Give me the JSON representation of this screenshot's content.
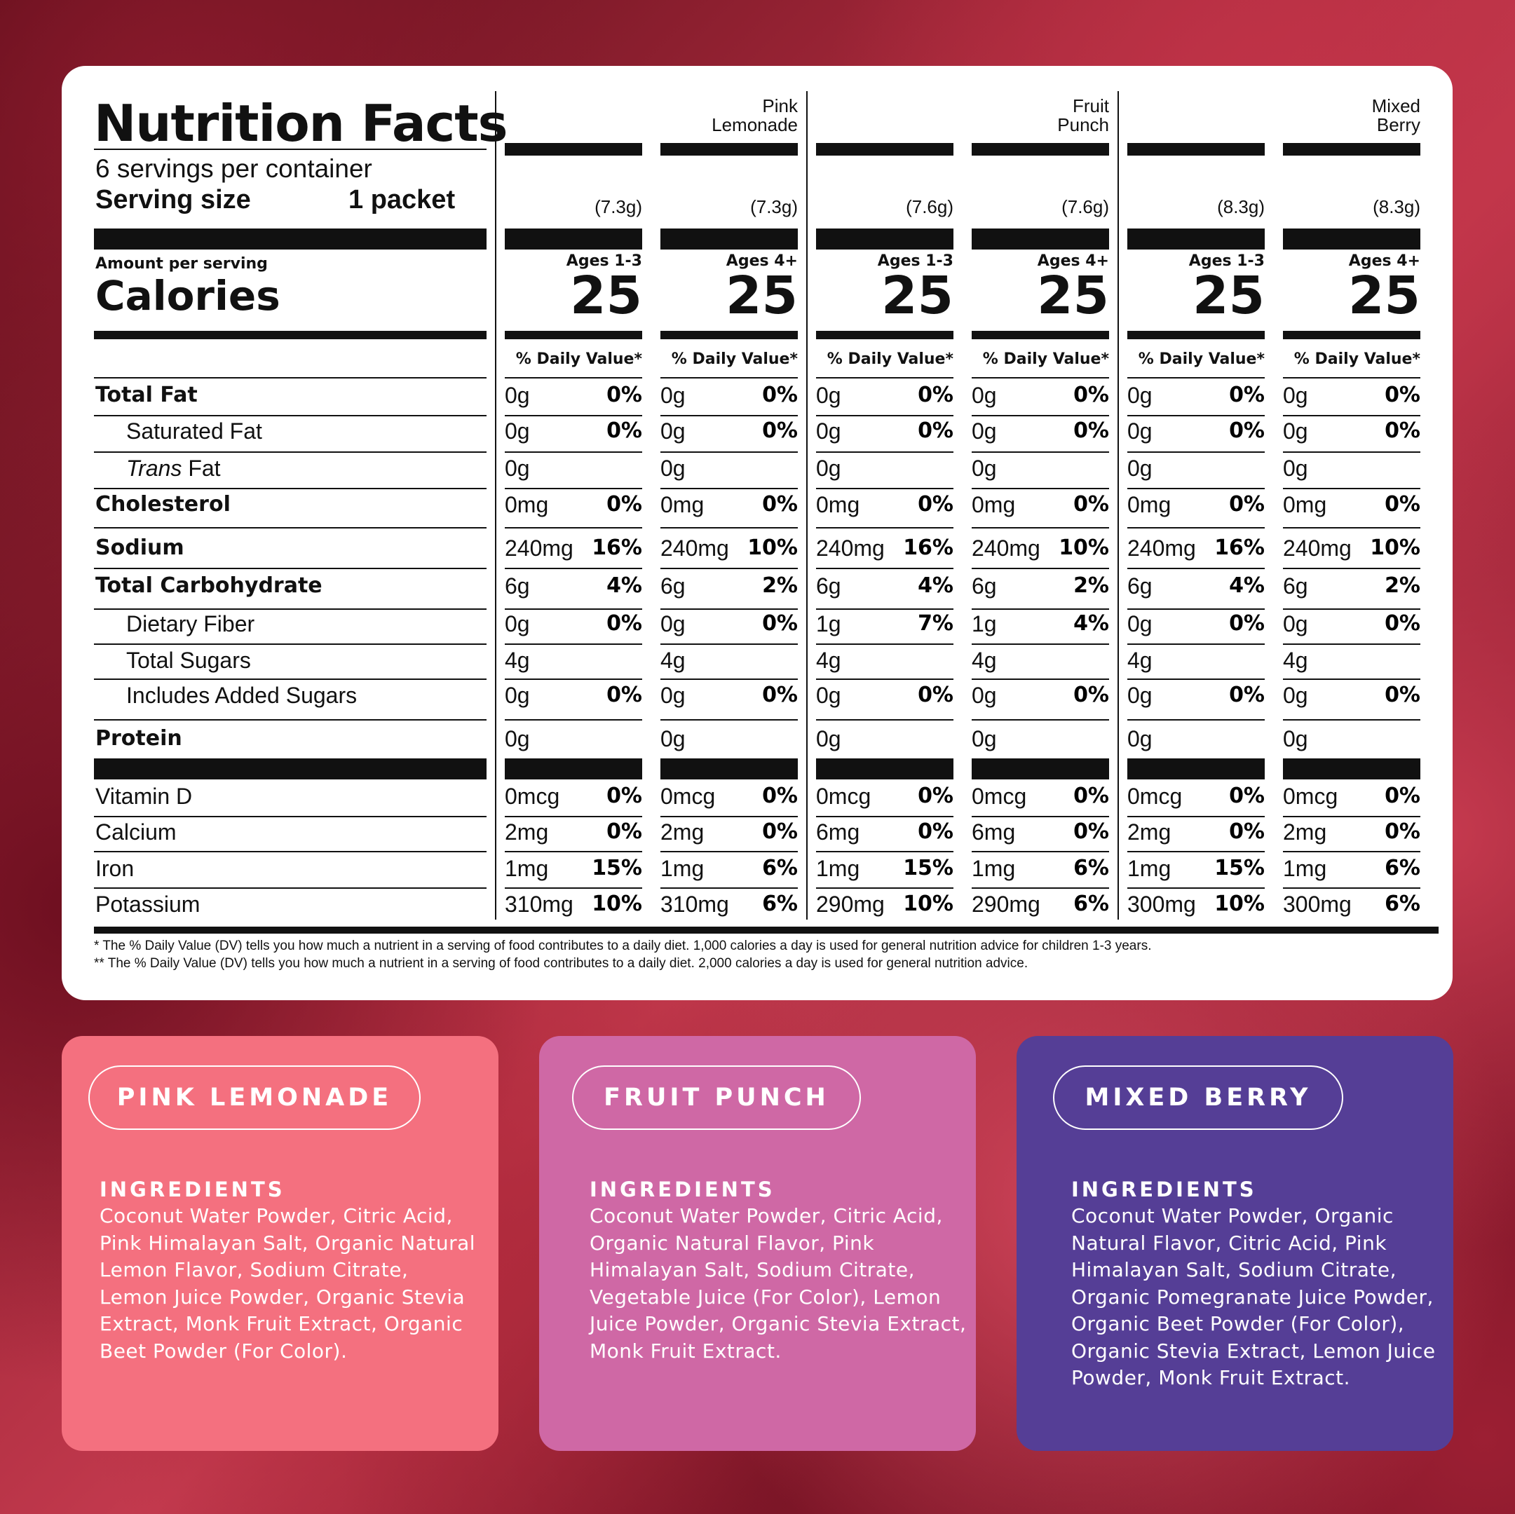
{
  "panel": {
    "title": "Nutrition Facts",
    "servings": "6 servings per container",
    "serving_size_label": "Serving size",
    "serving_size_value": "1 packet",
    "amount_per_serving": "Amount per serving",
    "calories_label": "Calories",
    "dv_header": "% Daily Value*"
  },
  "columns": [
    {
      "flavor": "",
      "weight": "(7.3g)",
      "age": "Ages 1-3",
      "calories": "25"
    },
    {
      "flavor": "Pink\nLemonade",
      "weight": "(7.3g)",
      "age": "Ages 4+",
      "calories": "25"
    },
    {
      "flavor": "",
      "weight": "(7.6g)",
      "age": "Ages 1-3",
      "calories": "25"
    },
    {
      "flavor": "Fruit\nPunch",
      "weight": "(7.6g)",
      "age": "Ages 4+",
      "calories": "25"
    },
    {
      "flavor": "",
      "weight": "(8.3g)",
      "age": "Ages 1-3",
      "calories": "25"
    },
    {
      "flavor": "Mixed\nBerry",
      "weight": "(8.3g)",
      "age": "Ages 4+",
      "calories": "25"
    }
  ],
  "nutrients": [
    {
      "label": "Total Fat",
      "values": [
        [
          "0g",
          "0%"
        ],
        [
          "0g",
          "0%"
        ],
        [
          "0g",
          "0%"
        ],
        [
          "0g",
          "0%"
        ],
        [
          "0g",
          "0%"
        ],
        [
          "0g",
          "0%"
        ]
      ]
    },
    {
      "label": "Saturated Fat",
      "values": [
        [
          "0g",
          "0%"
        ],
        [
          "0g",
          "0%"
        ],
        [
          "0g",
          "0%"
        ],
        [
          "0g",
          "0%"
        ],
        [
          "0g",
          "0%"
        ],
        [
          "0g",
          "0%"
        ]
      ]
    },
    {
      "label_italic": "Trans",
      "label": " Fat",
      "values": [
        [
          "0g",
          ""
        ],
        [
          "0g",
          ""
        ],
        [
          "0g",
          ""
        ],
        [
          "0g",
          ""
        ],
        [
          "0g",
          ""
        ],
        [
          "0g",
          ""
        ]
      ]
    },
    {
      "label": "Cholesterol",
      "values": [
        [
          "0mg",
          "0%"
        ],
        [
          "0mg",
          "0%"
        ],
        [
          "0mg",
          "0%"
        ],
        [
          "0mg",
          "0%"
        ],
        [
          "0mg",
          "0%"
        ],
        [
          "0mg",
          "0%"
        ]
      ]
    },
    {
      "label": "Sodium",
      "values": [
        [
          "240mg",
          "16%"
        ],
        [
          "240mg",
          "10%"
        ],
        [
          "240mg",
          "16%"
        ],
        [
          "240mg",
          "10%"
        ],
        [
          "240mg",
          "16%"
        ],
        [
          "240mg",
          "10%"
        ]
      ]
    },
    {
      "label": "Total Carbohydrate",
      "values": [
        [
          "6g",
          "4%"
        ],
        [
          "6g",
          "2%"
        ],
        [
          "6g",
          "4%"
        ],
        [
          "6g",
          "2%"
        ],
        [
          "6g",
          "4%"
        ],
        [
          "6g",
          "2%"
        ]
      ]
    },
    {
      "label": "Dietary Fiber",
      "values": [
        [
          "0g",
          "0%"
        ],
        [
          "0g",
          "0%"
        ],
        [
          "1g",
          "7%"
        ],
        [
          "1g",
          "4%"
        ],
        [
          "0g",
          "0%"
        ],
        [
          "0g",
          "0%"
        ]
      ]
    },
    {
      "label": "Total Sugars",
      "values": [
        [
          "4g",
          ""
        ],
        [
          "4g",
          ""
        ],
        [
          "4g",
          ""
        ],
        [
          "4g",
          ""
        ],
        [
          "4g",
          ""
        ],
        [
          "4g",
          ""
        ]
      ]
    },
    {
      "label": "Includes Added Sugars",
      "values": [
        [
          "0g",
          "0%"
        ],
        [
          "0g",
          "0%"
        ],
        [
          "0g",
          "0%"
        ],
        [
          "0g",
          "0%"
        ],
        [
          "0g",
          "0%"
        ],
        [
          "0g",
          "0%"
        ]
      ]
    },
    {
      "label": "Protein",
      "values": [
        [
          "0g",
          ""
        ],
        [
          "0g",
          ""
        ],
        [
          "0g",
          ""
        ],
        [
          "0g",
          ""
        ],
        [
          "0g",
          ""
        ],
        [
          "0g",
          ""
        ]
      ]
    },
    {
      "label": "Vitamin D",
      "values": [
        [
          "0mcg",
          "0%"
        ],
        [
          "0mcg",
          "0%"
        ],
        [
          "0mcg",
          "0%"
        ],
        [
          "0mcg",
          "0%"
        ],
        [
          "0mcg",
          "0%"
        ],
        [
          "0mcg",
          "0%"
        ]
      ]
    },
    {
      "label": "Calcium",
      "values": [
        [
          "2mg",
          "0%"
        ],
        [
          "2mg",
          "0%"
        ],
        [
          "6mg",
          "0%"
        ],
        [
          "6mg",
          "0%"
        ],
        [
          "2mg",
          "0%"
        ],
        [
          "2mg",
          "0%"
        ]
      ]
    },
    {
      "label": "Iron",
      "values": [
        [
          "1mg",
          "15%"
        ],
        [
          "1mg",
          "6%"
        ],
        [
          "1mg",
          "15%"
        ],
        [
          "1mg",
          "6%"
        ],
        [
          "1mg",
          "15%"
        ],
        [
          "1mg",
          "6%"
        ]
      ]
    },
    {
      "label": "Potassium",
      "values": [
        [
          "310mg",
          "10%"
        ],
        [
          "310mg",
          "6%"
        ],
        [
          "290mg",
          "10%"
        ],
        [
          "290mg",
          "6%"
        ],
        [
          "300mg",
          "10%"
        ],
        [
          "300mg",
          "6%"
        ]
      ]
    }
  ],
  "footnotes": [
    "*  The % Daily Value (DV) tells you how much a nutrient in a serving of food contributes to a daily diet. 1,000 calories a day is used for general nutrition advice for children 1-3 years.",
    "** The % Daily Value (DV) tells you how much a nutrient in a serving of food contributes to a daily diet. 2,000 calories a day is used for general nutrition advice."
  ],
  "flavors": [
    {
      "name": "PINK LEMONADE",
      "color": "#f4707f",
      "ingredients_label": "INGREDIENTS",
      "ingredients": "Coconut Water Powder, Citric Acid, Pink Himalayan Salt, Organic Natural Lemon Flavor, Sodium Citrate, Lemon Juice Powder, Organic Stevia Extract, Monk Fruit Extract, Organic Beet Powder (For Color)."
    },
    {
      "name": "FRUIT PUNCH",
      "color": "#cf68a5",
      "ingredients_label": "INGREDIENTS",
      "ingredients": "Coconut Water Powder, Citric Acid, Organic Natural Flavor, Pink Himalayan Salt, Sodium Citrate, Vegetable Juice (For Color), Lemon Juice Powder, Organic Stevia Extract, Monk Fruit Extract."
    },
    {
      "name": "MIXED BERRY",
      "color": "#553e96",
      "ingredients_label": "INGREDIENTS",
      "ingredients": "Coconut Water Powder, Organic Natural Flavor, Citric Acid, Pink Himalayan Salt, Sodium Citrate, Organic Pomegranate Juice Powder, Organic Beet Powder (For Color), Organic Stevia Extract, Lemon Juice Powder, Monk Fruit Extract."
    }
  ]
}
